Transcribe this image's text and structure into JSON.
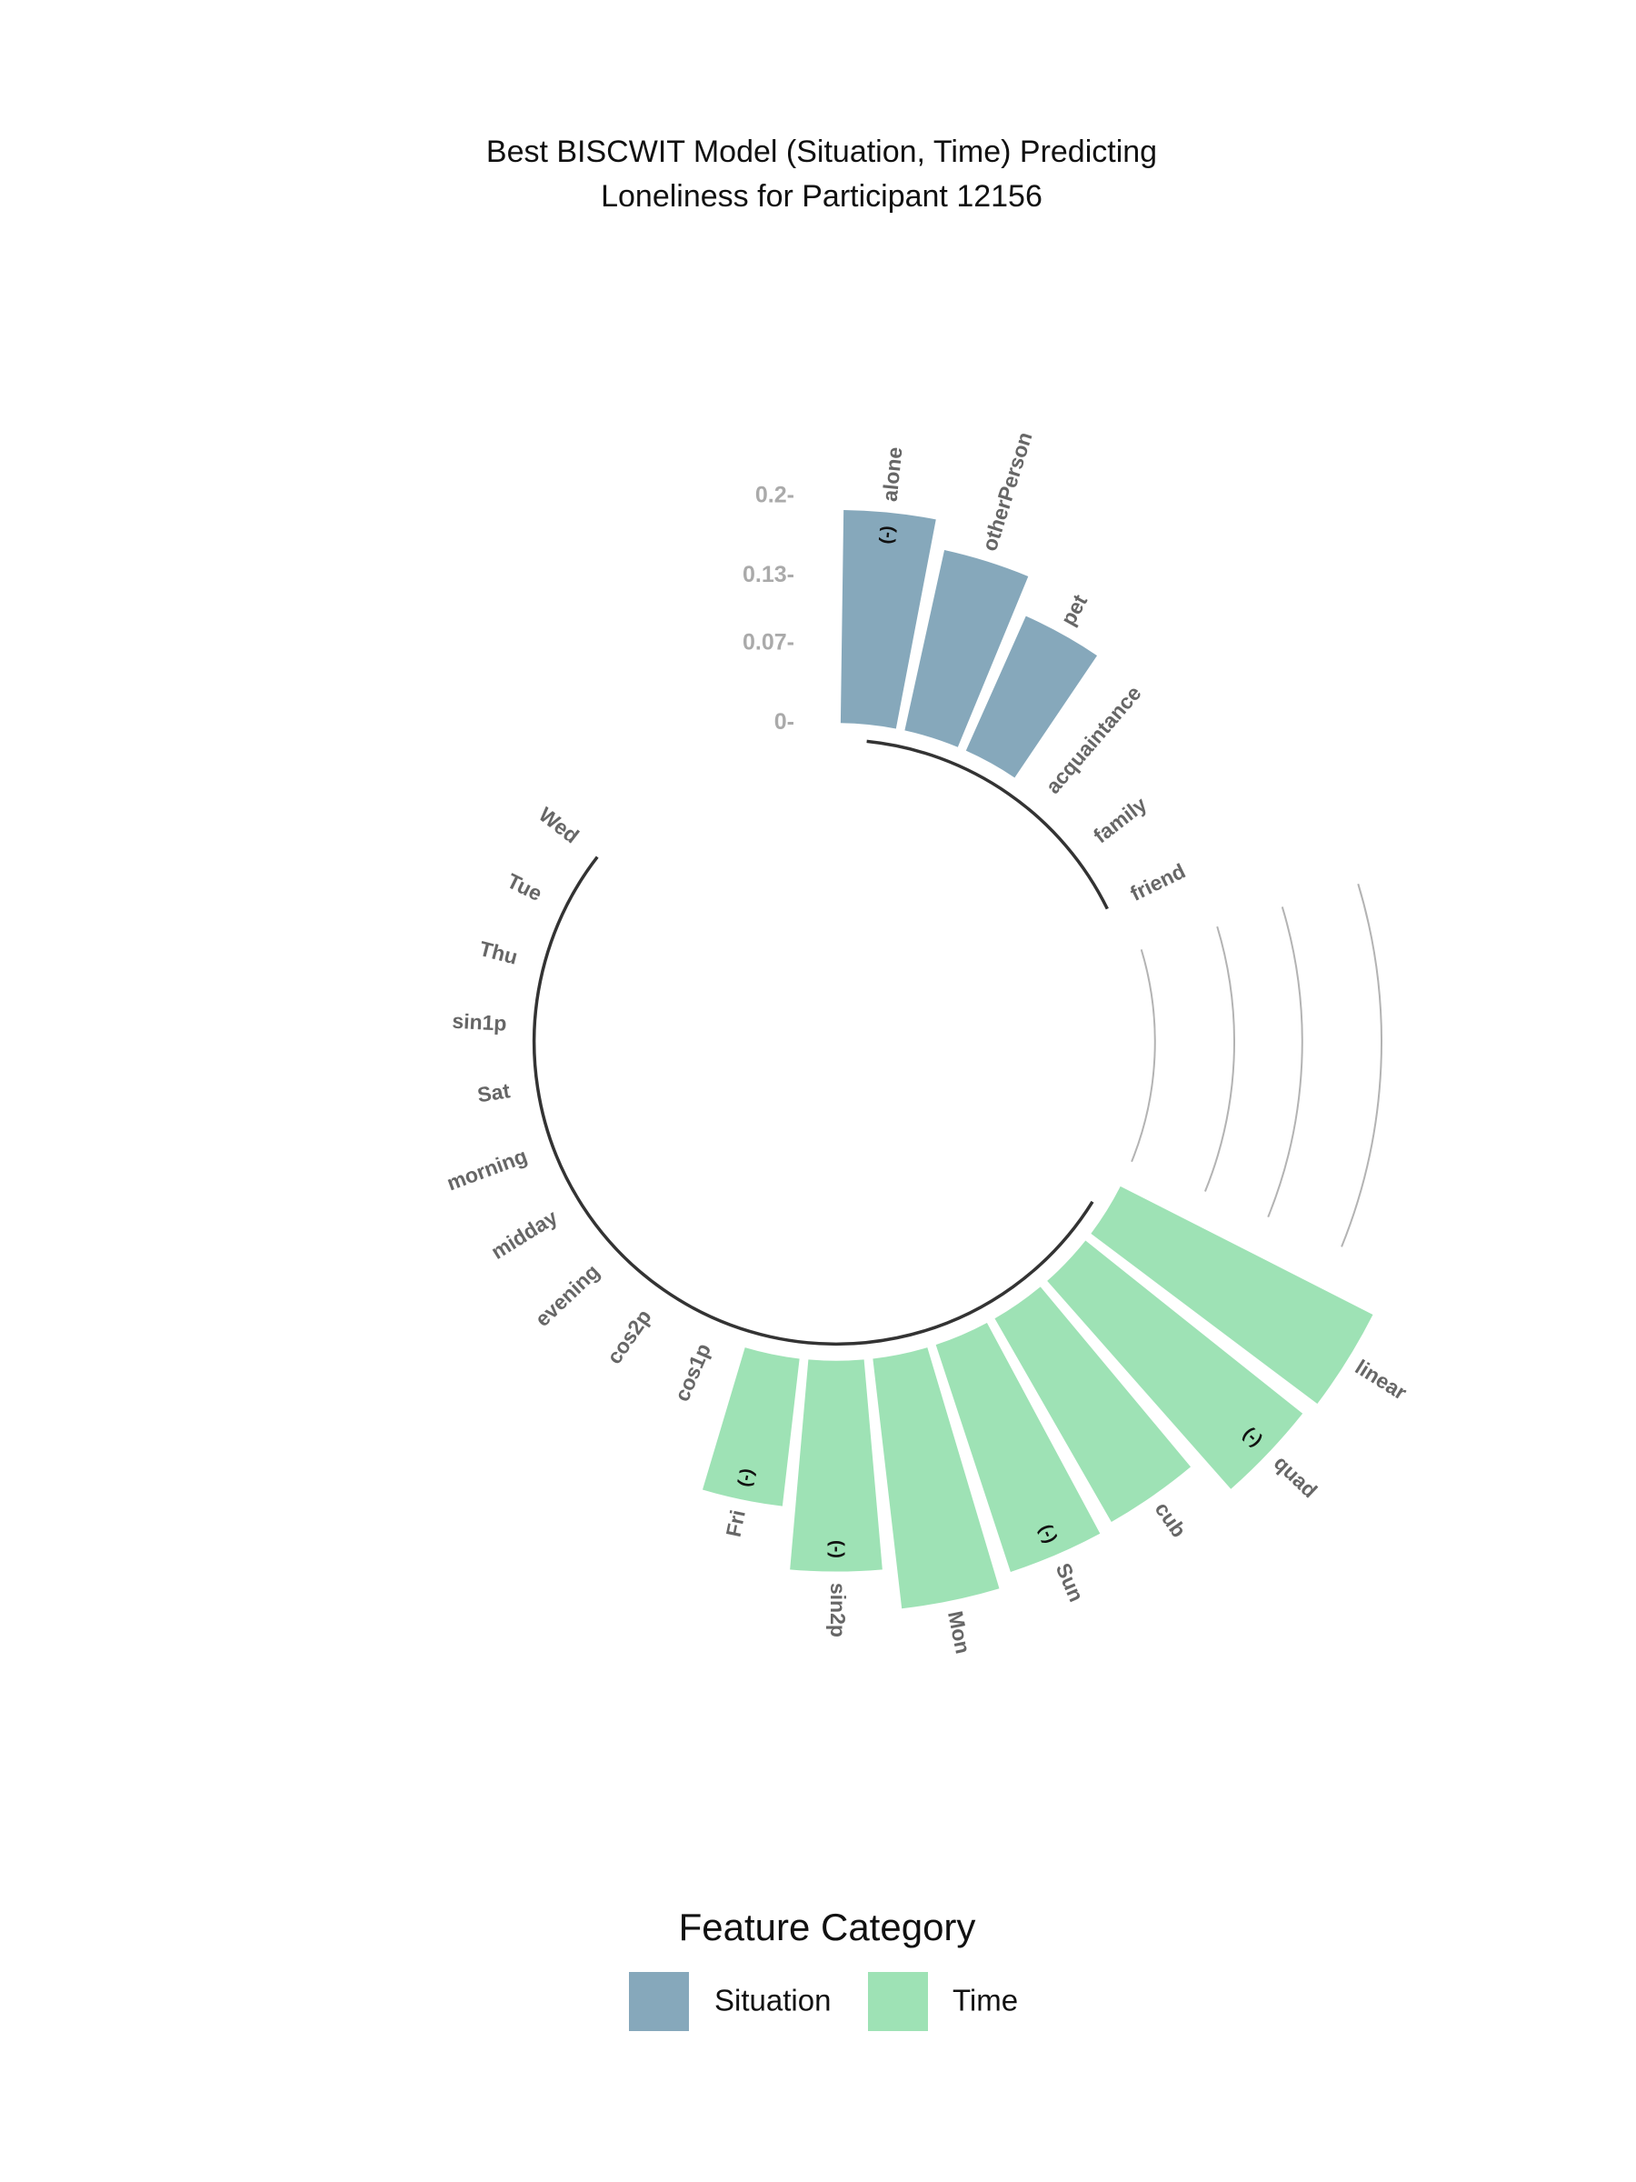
{
  "chart_data": {
    "type": "bar",
    "coord": "polar",
    "title": "Best BISCWIT Model (Situation, Time) Predicting",
    "subtitle": "Loneliness for Participant 12156",
    "legend_title": "Feature Category",
    "grid": true,
    "ylim": [
      0,
      0.25
    ],
    "yticks": [
      {
        "value": 0,
        "label": "0-"
      },
      {
        "value": 0.07,
        "label": "0.07-"
      },
      {
        "value": 0.13,
        "label": "0.13-"
      },
      {
        "value": 0.2,
        "label": "0.2-"
      }
    ],
    "series": [
      {
        "name": "Situation",
        "color": "#86a8bb",
        "categories": [
          "alone",
          "otherPerson",
          "pet",
          "acquaintance",
          "family",
          "friend"
        ],
        "values": [
          0.188,
          0.163,
          0.13,
          0,
          0,
          0
        ],
        "annotations": [
          "(-)",
          null,
          null,
          null,
          null,
          null
        ]
      },
      {
        "name": "Time",
        "color": "#9ee2b5",
        "categories": [
          "linear",
          "quad",
          "cub",
          "Sun",
          "Mon",
          "sin2p",
          "Fri",
          "cos1p",
          "cos2p",
          "evening",
          "midday",
          "morning",
          "Sat",
          "sin1p",
          "Thu",
          "Tue",
          "Wed"
        ],
        "values": [
          0.25,
          0.245,
          0.207,
          0.211,
          0.222,
          0.186,
          0.131,
          0,
          0,
          0,
          0,
          0,
          0,
          0,
          0,
          0,
          0
        ],
        "annotations": [
          null,
          "(-)",
          null,
          "(-)",
          null,
          "(-)",
          "(-)",
          null,
          null,
          null,
          null,
          null,
          null,
          null,
          null,
          null,
          null
        ]
      }
    ]
  }
}
